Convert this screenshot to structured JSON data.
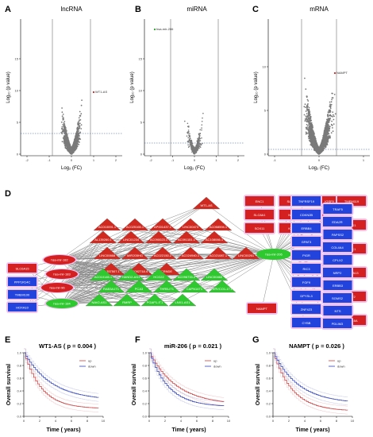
{
  "panels": {
    "A": {
      "letter": "A",
      "title": "lncRNA",
      "xlabel": "Log₂ (FC)",
      "ylabel": "Log₁₀ (p value)",
      "xticks": [
        "-2",
        "-1",
        "0",
        "1",
        "2"
      ],
      "yticks": [
        "0",
        "5",
        "10",
        "15"
      ],
      "annot": "WT1-AS"
    },
    "B": {
      "letter": "B",
      "title": "miRNA",
      "xlabel": "Log₂ (FC)",
      "ylabel": "Log₁₀ (p value)",
      "xticks": [
        "-2",
        "-1",
        "0",
        "1",
        "2"
      ],
      "yticks": [
        "0",
        "5",
        "10",
        "15"
      ],
      "annot": "hsa-mir-206"
    },
    "C": {
      "letter": "C",
      "title": "mRNA",
      "xlabel": "Log₂ (FC)",
      "ylabel": "Log₁₀ (p value)",
      "xticks": [
        "-1",
        "0",
        "1"
      ],
      "yticks": [
        "0",
        "5",
        "10"
      ],
      "annot": "NAMPT"
    },
    "D": {
      "letter": "D"
    },
    "E": {
      "letter": "E",
      "title": "WT1-AS  ( p = 0.004 )",
      "ylabel": "Overall survival",
      "xlabel": "Time ( years)",
      "legend": [
        "up",
        "down"
      ],
      "xticks": [
        "0",
        "2",
        "4",
        "6",
        "8",
        "10"
      ],
      "yticks": [
        "0.0",
        "0.2",
        "0.4",
        "0.6",
        "0.8",
        "1.0"
      ]
    },
    "F": {
      "letter": "F",
      "title": "miR-206  ( p = 0.021 )",
      "ylabel": "Overall survival",
      "xlabel": "Time ( years)",
      "legend": [
        "up",
        "down"
      ],
      "xticks": [
        "0",
        "2",
        "4",
        "6",
        "8",
        "10"
      ],
      "yticks": [
        "0.0",
        "0.2",
        "0.4",
        "0.6",
        "0.8",
        "1.0"
      ]
    },
    "G": {
      "letter": "G",
      "title": "NAMPT  ( p = 0.026 )",
      "ylabel": "Overall survival",
      "xlabel": "Time ( years)",
      "legend": [
        "up",
        "down"
      ],
      "xticks": [
        "0",
        "2",
        "4",
        "6",
        "8",
        "10"
      ],
      "yticks": [
        "0.0",
        "0.2",
        "0.4",
        "0.6",
        "0.8",
        "1.0"
      ]
    }
  },
  "network": {
    "hub": "hsa-mir-206",
    "left_mirnas_red": [
      "hsa-mir-182",
      "hsa-mir-183",
      "hsa-mir-96"
    ],
    "left_mirna_green": "hsa-mir-184",
    "left_boxes": [
      {
        "label": "SLC6A15",
        "color": "red"
      },
      {
        "label": "PPP1R14C",
        "color": "blue"
      },
      {
        "label": "TMEM100",
        "color": "blue"
      },
      {
        "label": "HOXA10",
        "color": "blue"
      }
    ],
    "lnc_up": [
      "WT1-AS",
      "AC010091.1",
      "AC025165.1",
      "AP001437.1",
      "LINC00473",
      "AC068594.1",
      "AL139260.1",
      "LINC01234",
      "AC090023.1",
      "AC091151.1",
      "AC108066.1",
      "LINC00668",
      "MIR205HG",
      "AC022150.2",
      "AC024940.1",
      "AC021087.1",
      "LINC00261",
      "AL357507.1",
      "AC092718.4",
      "CRNDE"
    ],
    "lnc_down": [
      "AC010145.1",
      "HAND2-AS1",
      "HCG22",
      "AC096733.2",
      "LINC00460",
      "RAB3A1T1",
      "PCA3",
      "THRB-IT1",
      "CAPN14T1",
      "ERVCO1-1T1",
      "NAV2-AS1",
      "RMRP",
      "PGAP1-IT1",
      "LNX1-AS1"
    ],
    "mrna_red_cols": [
      [
        "ENC1",
        "SLC8A1",
        "SOX11",
        "TMEM119",
        "NOX1",
        "CDK1"
      ],
      [
        "SLC4A10",
        "NAPG2",
        "KCNK3",
        "SLC6A13",
        "E2F2",
        "ACTL6A"
      ],
      [
        "IGSF9",
        "ZNF92",
        "NAMPT"
      ]
    ],
    "mrna_blue_cols": [
      [
        "TNFRSF19",
        "CDKN2B",
        "ERBB4",
        "GPAT3",
        "PIGR",
        "RIC3",
        "FGF9",
        "DPYSL3",
        "ZNF423",
        "CYBB"
      ],
      [
        "TRAF5",
        "EDA2R",
        "PAPSS2",
        "COL4A4",
        "CPLX2",
        "NRP2",
        "ERBB3",
        "SGMS2",
        "NTS",
        "PDLIM3"
      ]
    ]
  }
}
